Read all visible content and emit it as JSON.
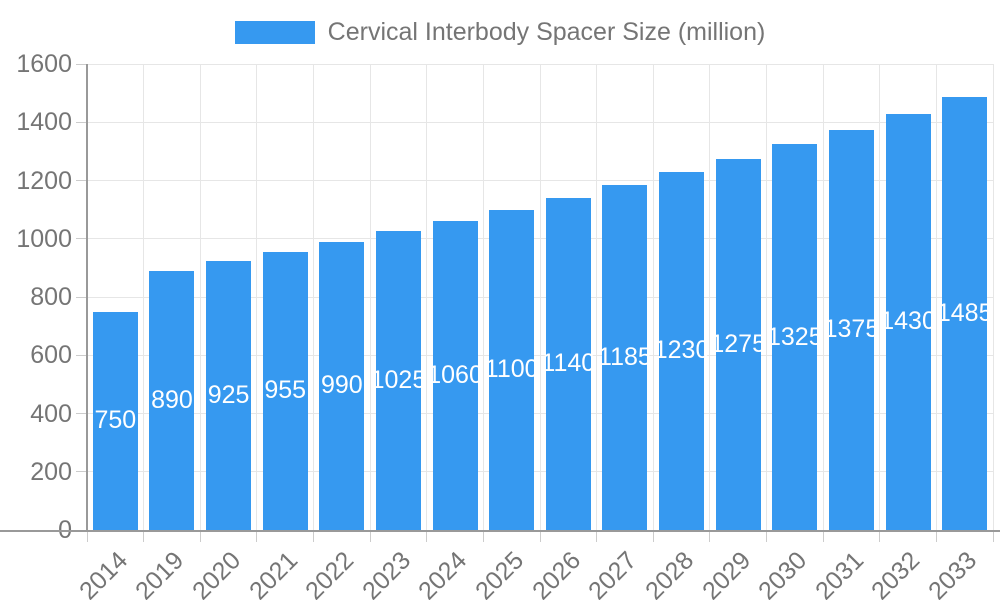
{
  "legend": {
    "label": "Cervical Interbody Spacer Size (million)"
  },
  "chart_data": {
    "type": "bar",
    "title": "Cervical Interbody Spacer Size (million)",
    "series_name": "Cervical Interbody Spacer Size (million)",
    "categories": [
      "2014",
      "2019",
      "2020",
      "2021",
      "2022",
      "2023",
      "2024",
      "2025",
      "2026",
      "2027",
      "2028",
      "2029",
      "2030",
      "2031",
      "2032",
      "2033"
    ],
    "values": [
      750,
      890,
      925,
      955,
      990,
      1025,
      1060,
      1100,
      1140,
      1185,
      1230,
      1275,
      1325,
      1375,
      1430,
      1485
    ],
    "xlabel": "",
    "ylabel": "",
    "ylim": [
      0,
      1600
    ],
    "y_ticks": [
      0,
      200,
      400,
      600,
      800,
      1000,
      1200,
      1400,
      1600
    ],
    "grid": true,
    "legend_position": "top-center",
    "value_label_position": "inside-middle",
    "x_tick_rotation_deg": -45,
    "colors": {
      "bar": "#3699F0",
      "value_label": "#FFFFFF",
      "gridline": "#E6E6E6",
      "tick": "#CCCCCC",
      "axis_line": "#999999",
      "label_text": "#757575"
    }
  }
}
